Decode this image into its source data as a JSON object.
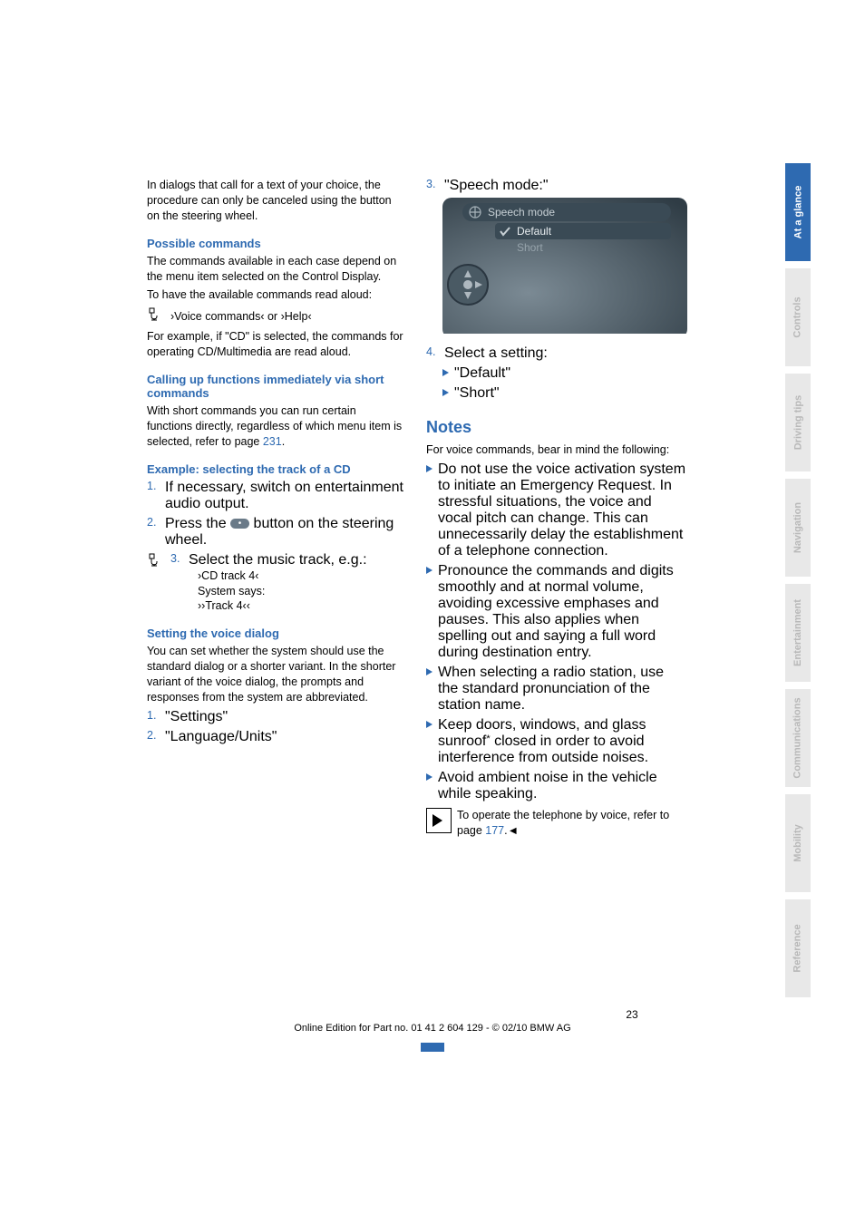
{
  "leftCol": {
    "intro": "In dialogs that call for a text of your choice, the procedure can only be canceled using the button on the steering wheel.",
    "possible": {
      "heading": "Possible commands",
      "p1": "The commands available in each case depend on the menu item selected on the Control Display.",
      "p2": "To have the available commands read aloud:",
      "cmd": "›Voice commands‹ or ›Help‹",
      "p3": "For example, if \"CD\" is selected, the commands for operating CD/Multimedia are read aloud."
    },
    "calling": {
      "heading": "Calling up functions immediately via short commands",
      "p_before": "With short commands you can run certain functions directly, regardless of which menu item is selected, refer to page ",
      "page_ref": "231",
      "p_after": "."
    },
    "example": {
      "heading": "Example: selecting the track of a CD",
      "step1_num": "1.",
      "step1": "If necessary, switch on entertainment audio output.",
      "step2_num": "2.",
      "step2_before": "Press the ",
      "step2_after": " button on the steering wheel.",
      "step3_num": "3.",
      "step3": "Select the music track, e.g.:",
      "step3_l1": "›CD track 4‹",
      "step3_l2": "System says:",
      "step3_l3": "››Track 4‹‹"
    },
    "setting": {
      "heading": "Setting the voice dialog",
      "p": "You can set whether the system should use the standard dialog or a shorter variant. In the shorter variant of the voice dialog, the prompts and responses from the system are abbreviated.",
      "s1_num": "1.",
      "s1": "\"Settings\"",
      "s2_num": "2.",
      "s2": "\"Language/Units\""
    }
  },
  "rightCol": {
    "s3_num": "3.",
    "s3": "\"Speech mode:\"",
    "ui": {
      "title": "Speech mode",
      "opt1": "Default",
      "opt2": "Short",
      "bg": "#596974",
      "text": "#c6cfd4",
      "highlight": "#3a4a55"
    },
    "s4_num": "4.",
    "s4": "Select a setting:",
    "s4_a": "\"Default\"",
    "s4_b": "\"Short\"",
    "notes_h": "Notes",
    "notes_intro": "For voice commands, bear in mind the following:",
    "b1": "Do not use the voice activation system to initiate an Emergency Request. In stressful situations, the voice and vocal pitch can change. This can unnecessarily delay the establishment of a telephone connection.",
    "b2": "Pronounce the commands and digits smoothly and at normal volume, avoiding excessive emphases and pauses. This also applies when spelling out and saying a full word during destination entry.",
    "b3": "When selecting a radio station, use the standard pronunciation of the station name.",
    "b4_before": "Keep doors, windows, and glass sunroof",
    "b4_star": "*",
    "b4_after": " closed in order to avoid interference from outside noises.",
    "b5": "Avoid ambient noise in the vehicle while speaking.",
    "info_before": "To operate the telephone by voice, refer to page ",
    "info_page": "177",
    "info_after": ".◄"
  },
  "sidebar": {
    "tabs": [
      {
        "label": "At a glance",
        "active": true
      },
      {
        "label": "Controls",
        "active": false
      },
      {
        "label": "Driving tips",
        "active": false
      },
      {
        "label": "Navigation",
        "active": false
      },
      {
        "label": "Entertainment",
        "active": false
      },
      {
        "label": "Communications",
        "active": false
      },
      {
        "label": "Mobility",
        "active": false
      },
      {
        "label": "Reference",
        "active": false
      }
    ]
  },
  "footer": {
    "page": "23",
    "edition": "Online Edition for Part no. 01 41 2 604 129 - © 02/10 BMW AG"
  }
}
